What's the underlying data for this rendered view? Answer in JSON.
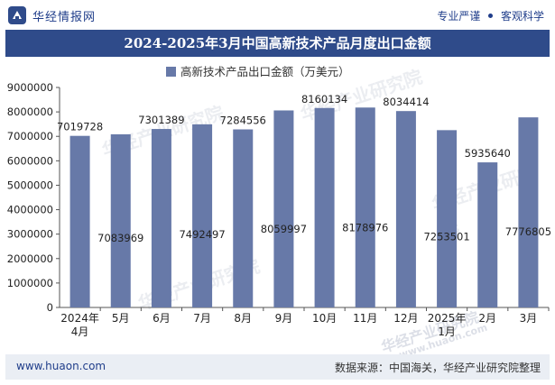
{
  "header": {
    "brand": "华经情报网",
    "slogan_left": "专业严谨",
    "slogan_right": "客观科学",
    "title": "2024-2025年3月中国高新技术产品月度出口金额"
  },
  "footer": {
    "website": "www.huaon.com",
    "source": "数据来源：中国海关，华经产业研究院整理"
  },
  "watermark": {
    "text": "华经产业研究院",
    "site": "www.huaon.com"
  },
  "chart_data": {
    "type": "bar",
    "title": "",
    "legend": {
      "label": "高新技术产品出口金额（万美元）",
      "position": "top-center"
    },
    "categories": [
      "2024年\n4月",
      "5月",
      "6月",
      "7月",
      "8月",
      "9月",
      "10月",
      "11月",
      "12月",
      "2025年\n1月",
      "2月",
      "3月"
    ],
    "series": [
      {
        "name": "高新技术产品出口金额（万美元）",
        "values": [
          7019728,
          7083969,
          7301389,
          7492497,
          7284556,
          8059997,
          8160134,
          8178976,
          8034414,
          7253501,
          5935640,
          7776805
        ]
      }
    ],
    "label_placement": [
      "top",
      "inside",
      "top",
      "inside",
      "top",
      "inside",
      "top",
      "inside",
      "top",
      "inside",
      "top",
      "inside"
    ],
    "ylim": [
      0,
      9000000
    ],
    "yticks": [
      0,
      1000000,
      2000000,
      3000000,
      4000000,
      5000000,
      6000000,
      7000000,
      8000000,
      9000000
    ],
    "grid": false,
    "colors": {
      "bar": "#6779a8",
      "axis": "#555555",
      "text": "#222222"
    }
  }
}
